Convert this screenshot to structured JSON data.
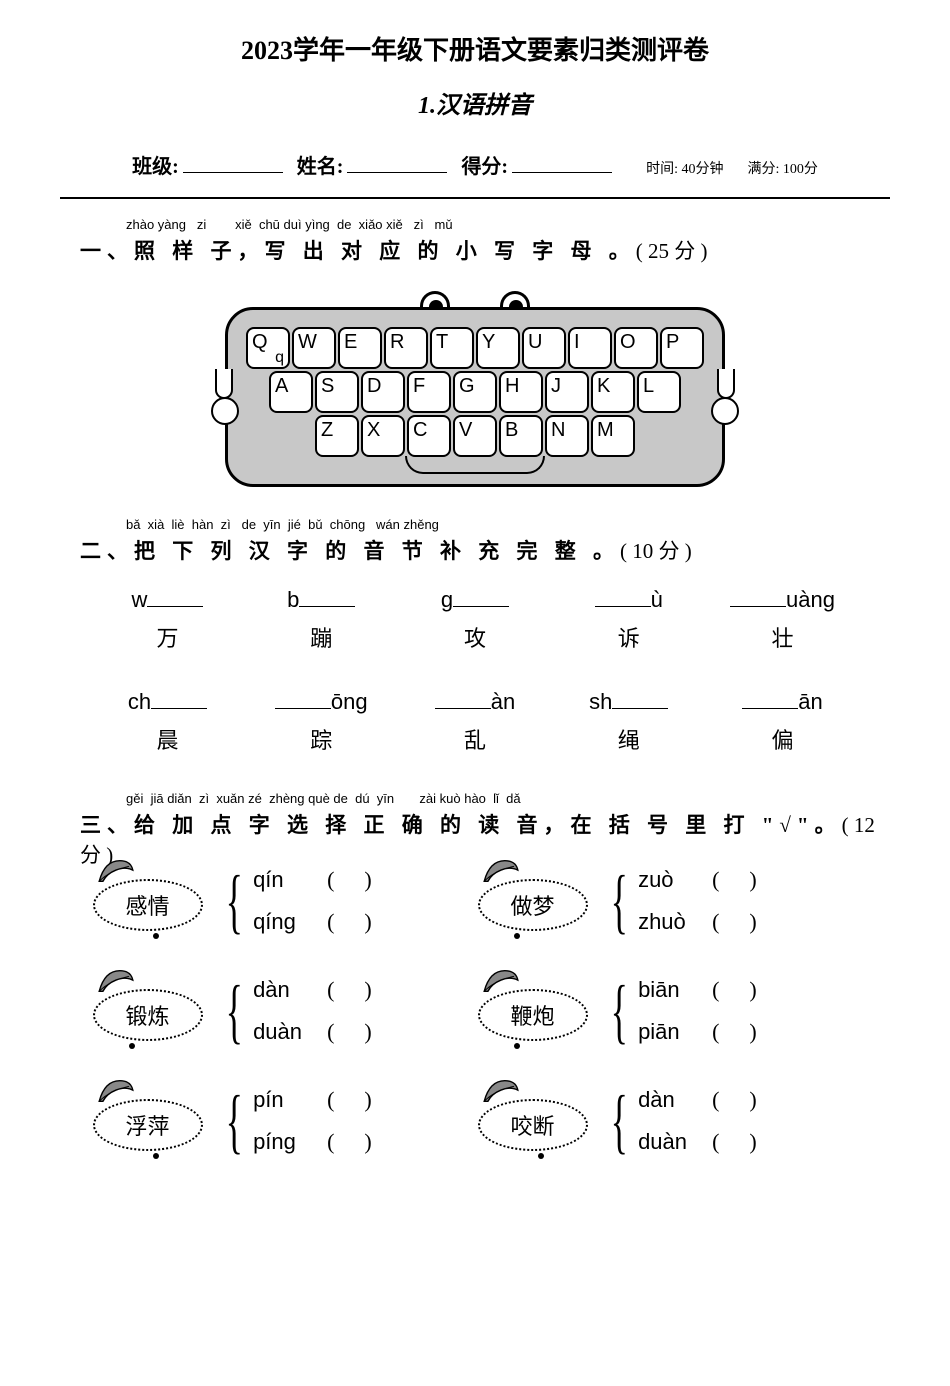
{
  "header": {
    "title": "2023学年一年级下册语文要素归类测评卷",
    "subtitle": "1.汉语拼音",
    "class_label": "班级:",
    "name_label": "姓名:",
    "score_label": "得分:",
    "time_label": "时间: 40分钟",
    "full_label": "满分: 100分"
  },
  "section1": {
    "pinyin": "zhào yàng   zi        xiě  chū duì yìng  de  xiǎo xiě   zì   mǔ",
    "text_a": "一、照 样 子，写 出 对 应 的 小 写 字 母 。",
    "points": "( 25 分 )",
    "keyboard": {
      "row1": [
        "Q",
        "W",
        "E",
        "R",
        "T",
        "Y",
        "U",
        "I",
        "O",
        "P"
      ],
      "row1_sub": {
        "Q": "q"
      },
      "row2": [
        "A",
        "S",
        "D",
        "F",
        "G",
        "H",
        "J",
        "K",
        "L"
      ],
      "row3": [
        "Z",
        "X",
        "C",
        "V",
        "B",
        "N",
        "M"
      ]
    }
  },
  "section2": {
    "pinyin": "bǎ  xià  liè  hàn  zì   de  yīn  jié  bǔ  chōng   wán zhěng",
    "text_a": "二、把 下 列 汉 字 的 音 节 补 充  完 整 。",
    "points": "( 10 分 )",
    "items": [
      [
        {
          "pre": "w",
          "suf": "",
          "char": "万"
        },
        {
          "pre": "b",
          "suf": "",
          "char": "蹦"
        },
        {
          "pre": "g",
          "suf": "",
          "char": "攻"
        },
        {
          "pre": "",
          "suf": "ù",
          "char": "诉"
        },
        {
          "pre": "",
          "suf": "uàng",
          "char": "壮"
        }
      ],
      [
        {
          "pre": "ch",
          "suf": "",
          "char": "晨"
        },
        {
          "pre": "",
          "suf": "ōng",
          "char": "踪"
        },
        {
          "pre": "",
          "suf": "àn",
          "char": "乱"
        },
        {
          "pre": "sh",
          "suf": "",
          "char": "绳"
        },
        {
          "pre": "",
          "suf": "ān",
          "char": "偏"
        }
      ]
    ]
  },
  "section3": {
    "pinyin": "gěi  jiā diǎn  zì  xuǎn zé  zhèng què de  dú  yīn       zài kuò hào  lǐ  dǎ",
    "text_a": "三、给 加 点 字 选 择 正 确 的 读 音，在 括 号 里 打 \"√\"。",
    "points": "( 12 分 )",
    "items": [
      [
        {
          "word": "感情",
          "dot_idx": 1,
          "opts": [
            "qín",
            "qíng"
          ]
        },
        {
          "word": "做梦",
          "dot_idx": 0,
          "opts": [
            "zuò",
            "zhuò"
          ]
        }
      ],
      [
        {
          "word": "锻炼",
          "dot_idx": 0,
          "opts": [
            "dàn",
            "duàn"
          ]
        },
        {
          "word": "鞭炮",
          "dot_idx": 0,
          "opts": [
            "biān",
            "piān"
          ]
        }
      ],
      [
        {
          "word": "浮萍",
          "dot_idx": 1,
          "opts": [
            "pín",
            "píng"
          ]
        },
        {
          "word": "咬断",
          "dot_idx": 1,
          "opts": [
            "dàn",
            "duàn"
          ]
        }
      ]
    ]
  },
  "colors": {
    "keyboard_body": "#c8c8c8",
    "line": "#000000",
    "bg": "#ffffff"
  }
}
